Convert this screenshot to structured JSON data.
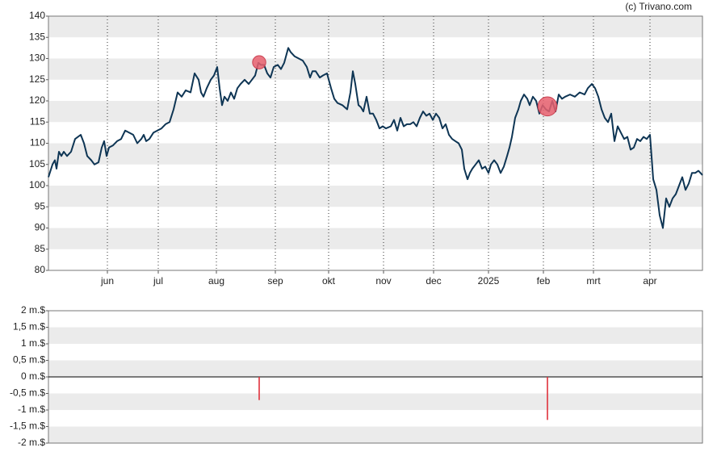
{
  "chart_data": [
    {
      "type": "line",
      "source": "(c) Trivano.com",
      "x": [
        0,
        5,
        8,
        10,
        13,
        16,
        19,
        23,
        28,
        33,
        40,
        44,
        48,
        53,
        57,
        62,
        66,
        69,
        72,
        75,
        80,
        85,
        90,
        95,
        100,
        105,
        110,
        115,
        118,
        121,
        125,
        130,
        135,
        140,
        145,
        150,
        155,
        160,
        165,
        170,
        176,
        181,
        186,
        189,
        192,
        196,
        201,
        205,
        209,
        212,
        215,
        218,
        222,
        226,
        230,
        234,
        238,
        243,
        248,
        252,
        256,
        260,
        263,
        267,
        271,
        275,
        279,
        284,
        288,
        292,
        297,
        300,
        305,
        310,
        315,
        320,
        324,
        327,
        331,
        336,
        340,
        345,
        350,
        354,
        358,
        364,
        370,
        374,
        377,
        380,
        384,
        387,
        390,
        394,
        398,
        402,
        406,
        410,
        414,
        418,
        424,
        428,
        432,
        436,
        440,
        444,
        448,
        452,
        456,
        460,
        464,
        468,
        472,
        476,
        480,
        484,
        488,
        492,
        496,
        500,
        504,
        508,
        512,
        515,
        519,
        522,
        525,
        529,
        533,
        537,
        541,
        545,
        548,
        552,
        556,
        560,
        564,
        568,
        571,
        574,
        578,
        582,
        585,
        589,
        593,
        596,
        600,
        604,
        608,
        612,
        616,
        620,
        624,
        628,
        632,
        636,
        640,
        646,
        652,
        658,
        664,
        668,
        673,
        677,
        681,
        685,
        689,
        693,
        697,
        701,
        705,
        709,
        713,
        717,
        721,
        725,
        729,
        733,
        737,
        741,
        745,
        749,
        753,
        757,
        761,
        765,
        769,
        773,
        777,
        781,
        785,
        789,
        793,
        797,
        801,
        805,
        810
      ],
      "series": [
        {
          "color": "#0e3554",
          "values": [
            102,
            105,
            106,
            104,
            108,
            107,
            108,
            107,
            108,
            111,
            112,
            110,
            107,
            106,
            105,
            105.5,
            109,
            110.5,
            107,
            109,
            109.5,
            110.5,
            111,
            113,
            112.5,
            112,
            110,
            111,
            112,
            110.5,
            111,
            112.5,
            113,
            113.5,
            114.5,
            115,
            118,
            122,
            121,
            122.5,
            122,
            126.5,
            125,
            122,
            121,
            123,
            125,
            126,
            128,
            123,
            119,
            121,
            120,
            122,
            120.5,
            123,
            124,
            125,
            124,
            125,
            126,
            129,
            128.5,
            128.5,
            126.5,
            125.5,
            128,
            128.5,
            127.5,
            129,
            132.5,
            131.5,
            130.5,
            130,
            129.5,
            128,
            125.5,
            127,
            127,
            125.5,
            126,
            126.5,
            123,
            120.5,
            119.5,
            119,
            118,
            122,
            127,
            124,
            119,
            118.5,
            117.5,
            121,
            117,
            117,
            115.5,
            113.5,
            114,
            113.5,
            114,
            115.5,
            113,
            116,
            114,
            114.5,
            114.5,
            115,
            114,
            116,
            117.5,
            116.5,
            117,
            115.5,
            117,
            116,
            113.5,
            114.5,
            112,
            111,
            110.5,
            110,
            108.5,
            104,
            101.5,
            103,
            104,
            105,
            106,
            104,
            104.5,
            103,
            105,
            106,
            105,
            103,
            104.5,
            107,
            109,
            111.5,
            116,
            118,
            120,
            121.5,
            120.5,
            119,
            121,
            120,
            117,
            119,
            118,
            117.5,
            120,
            117.5,
            121.5,
            120.5,
            121,
            121.5,
            121,
            122,
            121.5,
            123,
            124,
            123,
            121,
            118,
            116,
            115,
            117,
            110.5,
            114,
            112.5,
            111,
            111.5,
            108.5,
            109,
            111,
            110.5,
            111.5,
            111,
            112,
            101.5,
            99,
            93,
            90,
            97,
            95,
            97,
            98,
            100,
            102,
            99,
            100.5,
            103,
            103,
            103.5,
            102.5
          ]
        }
      ],
      "markers": [
        {
          "x": 261,
          "y": 129.1
        },
        {
          "x": 618,
          "y": 118.7
        }
      ],
      "marker_color": "#e8606e",
      "xlim": [
        0,
        810
      ],
      "xticks": [
        {
          "value": 73,
          "label": "jun"
        },
        {
          "value": 136,
          "label": "jul"
        },
        {
          "value": 208,
          "label": "aug"
        },
        {
          "value": 281,
          "label": "sep"
        },
        {
          "value": 347,
          "label": "okt"
        },
        {
          "value": 415,
          "label": "nov"
        },
        {
          "value": 477,
          "label": "dec"
        },
        {
          "value": 545,
          "label": "2025"
        },
        {
          "value": 613,
          "label": "feb"
        },
        {
          "value": 675,
          "label": "mrt"
        },
        {
          "value": 745,
          "label": "apr"
        }
      ],
      "ylim": [
        80,
        140
      ],
      "yticks": [
        80,
        85,
        90,
        95,
        100,
        105,
        110,
        115,
        120,
        125,
        130,
        135,
        140
      ],
      "grid": true
    },
    {
      "type": "bar",
      "x": [
        261,
        618
      ],
      "values": [
        -0.7,
        -1.3
      ],
      "color": "#e0303a",
      "xlim": [
        0,
        810
      ],
      "ylim": [
        -2,
        2
      ],
      "yticks": [
        {
          "value": -2,
          "label": "-2 m.$"
        },
        {
          "value": -1.5,
          "label": "-1,5 m.$"
        },
        {
          "value": -1,
          "label": "-1 m.$"
        },
        {
          "value": -0.5,
          "label": "-0,5 m.$"
        },
        {
          "value": 0,
          "label": "0 m.$"
        },
        {
          "value": 0.5,
          "label": "0,5 m.$"
        },
        {
          "value": 1,
          "label": "1 m.$"
        },
        {
          "value": 1.5,
          "label": "1,5 m.$"
        },
        {
          "value": 2,
          "label": "2 m.$"
        }
      ],
      "grid": true
    }
  ]
}
